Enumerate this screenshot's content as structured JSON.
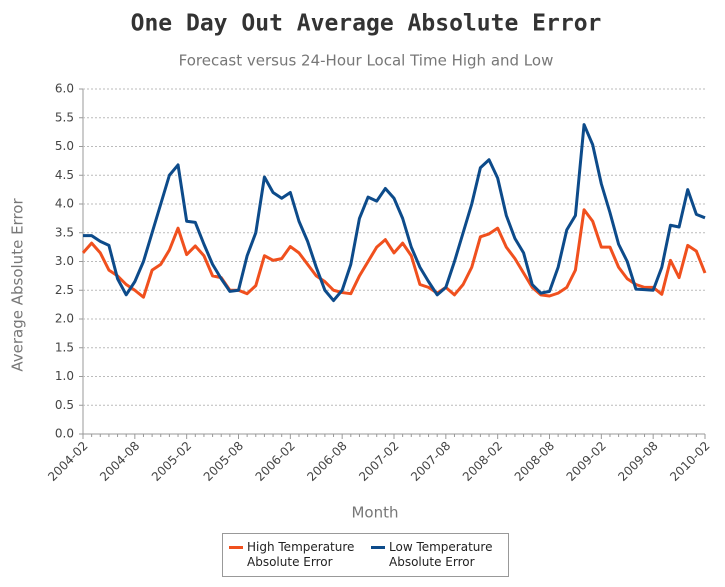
{
  "chart_data": {
    "type": "line",
    "title": "One Day Out Average Absolute Error",
    "subtitle": "Forecast versus 24-Hour Local Time High and Low",
    "x_label": "Month",
    "y_label": "Average Absolute Error",
    "categories": [
      "2004-02",
      null,
      null,
      null,
      null,
      null,
      "2004-08",
      null,
      null,
      null,
      null,
      null,
      "2005-02",
      null,
      null,
      null,
      null,
      null,
      "2005-08",
      null,
      null,
      null,
      null,
      null,
      "2006-02",
      null,
      null,
      null,
      null,
      null,
      "2006-08",
      null,
      null,
      null,
      null,
      null,
      "2007-02",
      null,
      null,
      null,
      null,
      null,
      "2007-08",
      null,
      null,
      null,
      null,
      null,
      "2008-02",
      null,
      null,
      null,
      null,
      null,
      "2008-08",
      null,
      null,
      null,
      null,
      null,
      "2009-02",
      null,
      null,
      null,
      null,
      null,
      "2009-08",
      null,
      null,
      null,
      null,
      null,
      "2010-02"
    ],
    "series": [
      {
        "name": "High Temperature Absolute Error",
        "color": "#f0501e",
        "values": [
          3.15,
          3.32,
          3.15,
          2.85,
          2.75,
          2.6,
          2.5,
          2.38,
          2.85,
          2.95,
          3.2,
          3.58,
          3.12,
          3.27,
          3.1,
          2.75,
          2.72,
          2.5,
          2.5,
          2.44,
          2.58,
          3.1,
          3.02,
          3.05,
          3.26,
          3.15,
          2.95,
          2.75,
          2.65,
          2.5,
          2.46,
          2.44,
          2.75,
          3.0,
          3.25,
          3.38,
          3.15,
          3.32,
          3.1,
          2.6,
          2.55,
          2.45,
          2.55,
          2.42,
          2.6,
          2.9,
          3.43,
          3.48,
          3.58,
          3.25,
          3.05,
          2.8,
          2.55,
          2.42,
          2.4,
          2.45,
          2.55,
          2.85,
          3.9,
          3.7,
          3.25,
          3.25,
          2.9,
          2.7,
          2.6,
          2.55,
          2.55,
          2.43,
          3.02,
          2.72,
          3.28,
          3.18,
          2.8
        ]
      },
      {
        "name": "Low Temperature Absolute Error",
        "color": "#0d4b8a",
        "values": [
          3.45,
          3.45,
          3.35,
          3.28,
          2.7,
          2.42,
          2.65,
          3.0,
          3.5,
          4.0,
          4.5,
          4.68,
          3.7,
          3.68,
          3.3,
          2.95,
          2.7,
          2.48,
          2.5,
          3.1,
          3.5,
          4.47,
          4.2,
          4.1,
          4.2,
          3.7,
          3.35,
          2.9,
          2.5,
          2.32,
          2.5,
          2.95,
          3.75,
          4.12,
          4.05,
          4.27,
          4.1,
          3.75,
          3.25,
          2.9,
          2.65,
          2.42,
          2.55,
          3.0,
          3.5,
          4.0,
          4.63,
          4.77,
          4.45,
          3.8,
          3.4,
          3.15,
          2.6,
          2.45,
          2.48,
          2.9,
          3.55,
          3.8,
          5.38,
          5.03,
          4.35,
          3.85,
          3.3,
          3.0,
          2.52,
          2.51,
          2.5,
          2.9,
          3.63,
          3.6,
          4.25,
          3.82,
          3.76
        ]
      }
    ],
    "ylim": [
      0,
      6
    ],
    "yticks": [
      {
        "value": 0,
        "label": "0.0"
      },
      {
        "value": 0.5,
        "label": "0.5"
      },
      {
        "value": 1,
        "label": "1.0"
      },
      {
        "value": 1.5,
        "label": "1.5"
      },
      {
        "value": 2,
        "label": "2.0"
      },
      {
        "value": 2.5,
        "label": "2.5"
      },
      {
        "value": 3,
        "label": "3.0"
      },
      {
        "value": 3.5,
        "label": "3.5"
      },
      {
        "value": 4,
        "label": "4.0"
      },
      {
        "value": 4.5,
        "label": "4.5"
      },
      {
        "value": 5,
        "label": "5.0"
      },
      {
        "value": 5.5,
        "label": "5.5"
      },
      {
        "value": 6,
        "label": "6.0"
      }
    ],
    "grid": true
  }
}
